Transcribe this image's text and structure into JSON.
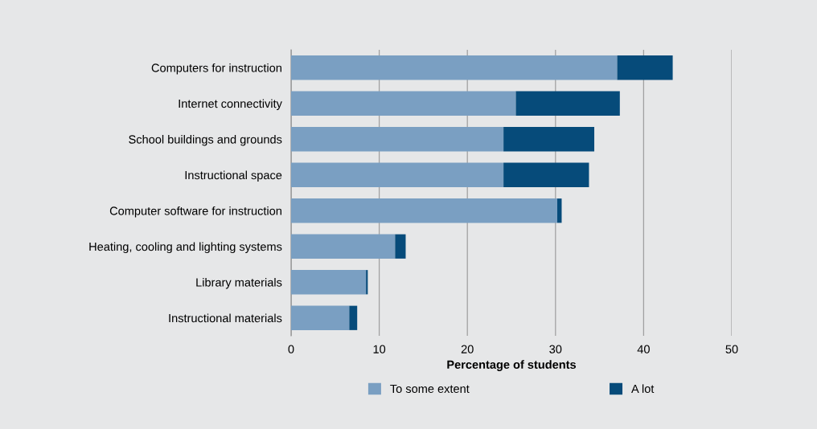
{
  "chart_data": {
    "type": "bar",
    "orientation": "horizontal",
    "stacked": true,
    "categories": [
      "Computers for instruction",
      "Internet connectivity",
      "School buildings and grounds",
      "Instructional space",
      "Computer software for instruction",
      "Heating, cooling and lighting systems",
      "Library materials",
      "Instructional materials"
    ],
    "series": [
      {
        "name": "To some extent",
        "color": "#7a9fc2",
        "values": [
          37.0,
          25.5,
          24.1,
          24.1,
          30.2,
          11.8,
          8.5,
          6.6
        ]
      },
      {
        "name": "A lot",
        "color": "#064b7a",
        "values": [
          6.3,
          11.8,
          10.3,
          9.7,
          0.5,
          1.2,
          0.2,
          0.9
        ]
      }
    ],
    "xlabel": "Percentage of students",
    "xlim": [
      0,
      50
    ],
    "xticks": [
      0,
      10,
      20,
      30,
      40,
      50
    ],
    "grid": "x",
    "legend": "bottom"
  }
}
